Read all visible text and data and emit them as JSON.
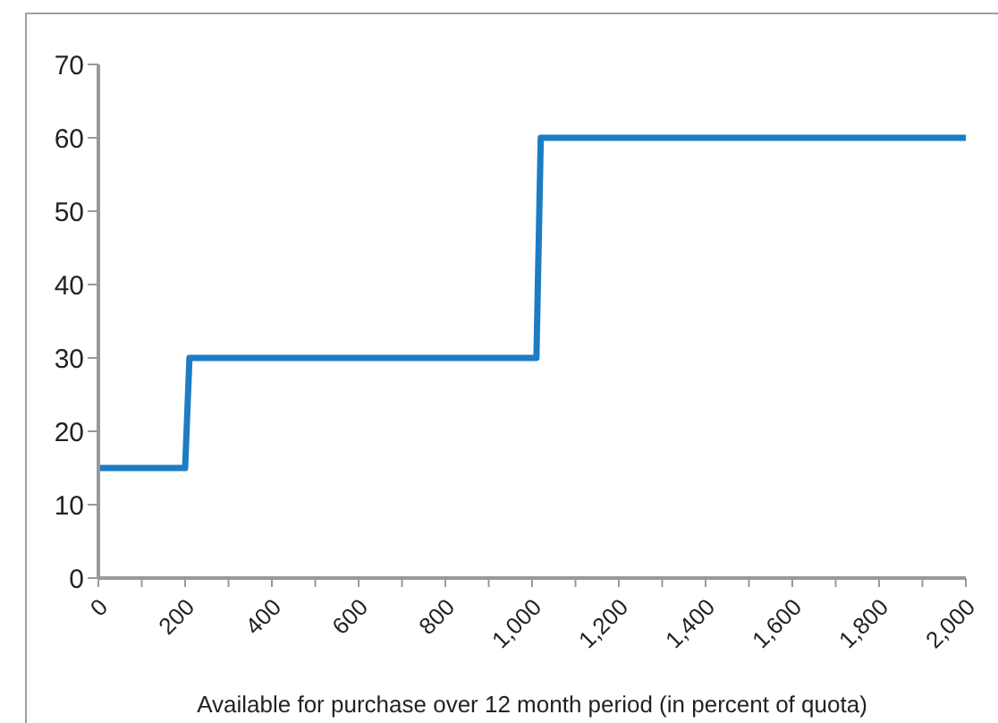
{
  "chart_data": {
    "type": "line",
    "xlabel": "Available for purchase over 12 month period (in percent of quota)",
    "x": [
      0,
      200,
      210,
      1010,
      1020,
      2000
    ],
    "series": [
      {
        "color": "#1c7cc4",
        "values": [
          15,
          15,
          30,
          30,
          60,
          60
        ]
      }
    ],
    "xlim": [
      0,
      2000
    ],
    "xticks": [
      0,
      {
        "value": 100,
        "label": null
      },
      {
        "value": 200,
        "label": "200"
      },
      {
        "value": 300,
        "label": null
      },
      {
        "value": 400,
        "label": "400"
      },
      {
        "value": 500,
        "label": null
      },
      {
        "value": 600,
        "label": "600"
      },
      {
        "value": 700,
        "label": null
      },
      {
        "value": 800,
        "label": "800"
      },
      {
        "value": 900,
        "label": null
      },
      {
        "value": 1000,
        "label": "1,000"
      },
      {
        "value": 1100,
        "label": null
      },
      {
        "value": 1200,
        "label": "1,200"
      },
      {
        "value": 1300,
        "label": null
      },
      {
        "value": 1400,
        "label": "1,400"
      },
      {
        "value": 1500,
        "label": null
      },
      {
        "value": 1600,
        "label": "1,600"
      },
      {
        "value": 1700,
        "label": null
      },
      {
        "value": 1800,
        "label": "1,800"
      },
      {
        "value": 1900,
        "label": null
      },
      {
        "value": 2000,
        "label": "2,000"
      }
    ],
    "ylim": [
      0,
      70
    ],
    "yticks": [
      0,
      10,
      20,
      30,
      40,
      50,
      60,
      70
    ],
    "grid": false,
    "legend": false,
    "marker": "none",
    "line_style": "solid"
  }
}
